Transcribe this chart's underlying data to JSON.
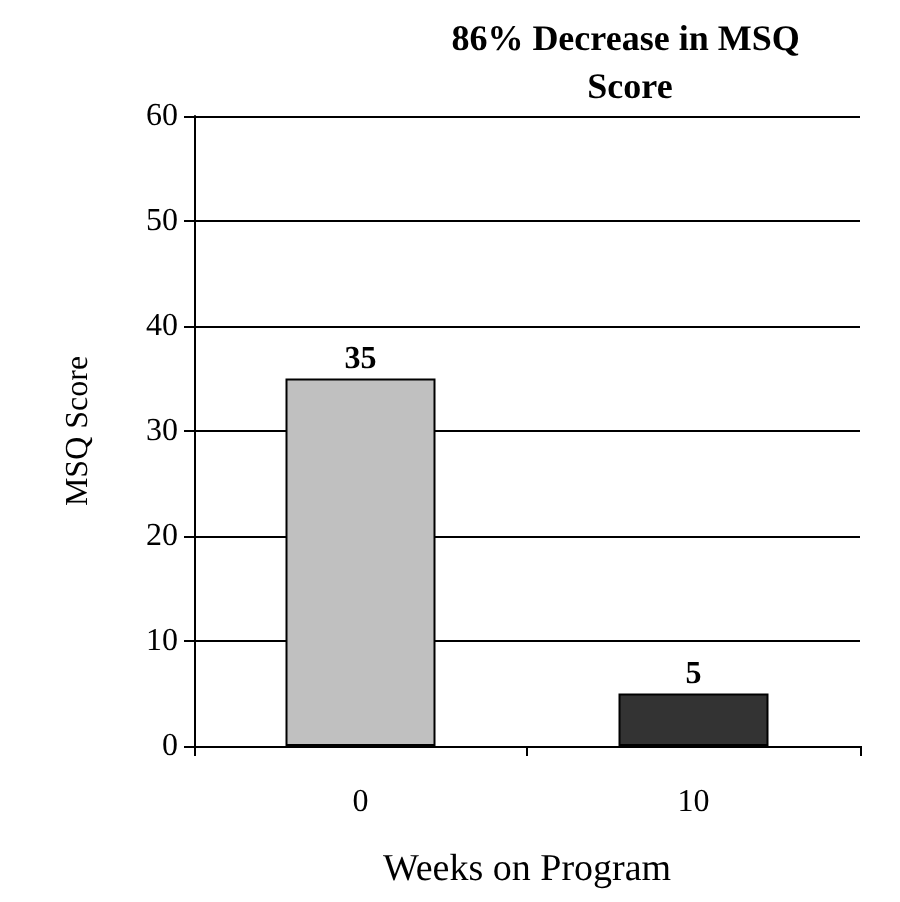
{
  "chart_data": {
    "type": "bar",
    "title": "86% Decrease in MSQ Score",
    "categories": [
      "0",
      "10"
    ],
    "values": [
      35,
      5
    ],
    "colors": [
      "#c0c0c0",
      "#333333"
    ],
    "xlabel": "Weeks on Program",
    "ylabel": "MSQ Score",
    "ylim": [
      0,
      60
    ],
    "yticks": [
      0,
      10,
      20,
      30,
      40,
      50,
      60
    ],
    "grid": "y",
    "data_labels": true
  }
}
